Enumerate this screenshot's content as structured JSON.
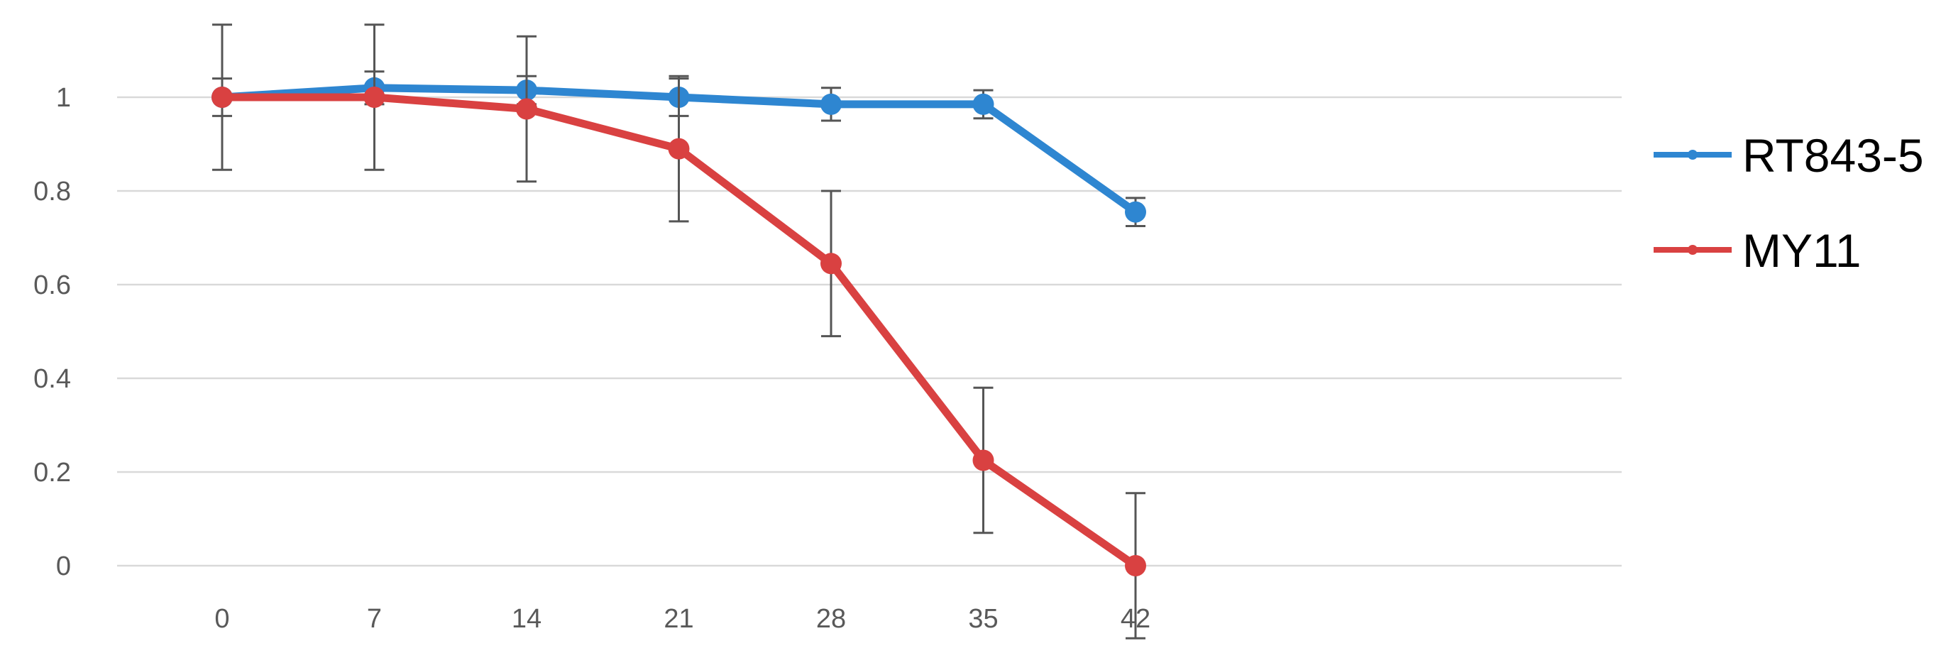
{
  "chart_data": {
    "type": "line",
    "title": "",
    "xlabel": "",
    "ylabel": "",
    "x": [
      0,
      7,
      14,
      21,
      28,
      35,
      42
    ],
    "x_tick_labels": [
      "0",
      "7",
      "14",
      "21",
      "28",
      "35",
      "42"
    ],
    "y_ticks": [
      0,
      0.2,
      0.4,
      0.6,
      0.8,
      1
    ],
    "y_tick_labels": [
      "0",
      "0.2",
      "0.4",
      "0.6",
      "0.8",
      "1"
    ],
    "ylim": [
      0,
      1.1
    ],
    "grid": true,
    "legend_position": "right",
    "series": [
      {
        "name": "RT843-5",
        "color": "#2e86d1",
        "values": [
          1.0,
          1.02,
          1.015,
          1.0,
          0.985,
          0.985,
          0.755
        ],
        "error": [
          0.04,
          0.035,
          0.03,
          0.04,
          0.035,
          0.03,
          0.03
        ]
      },
      {
        "name": "MY11",
        "color": "#d94141",
        "values": [
          1.0,
          1.0,
          0.975,
          0.89,
          0.645,
          0.225,
          0.0
        ],
        "error": [
          0.155,
          0.155,
          0.155,
          0.155,
          0.155,
          0.155,
          0.155
        ]
      }
    ]
  }
}
